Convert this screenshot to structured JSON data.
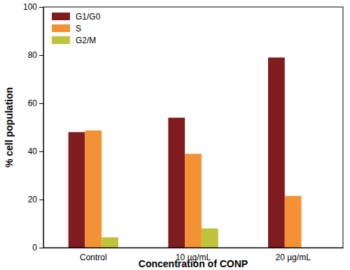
{
  "chart_data": {
    "type": "bar",
    "x_label": "Concentration of CONP",
    "y_label": "% cell population",
    "categories": [
      "Control",
      "10 µg/mL",
      "20 µg/mL"
    ],
    "series": [
      {
        "name": "G1/G0",
        "color": "#7f1c1f",
        "values": [
          48,
          54,
          79
        ]
      },
      {
        "name": "S",
        "color": "#f39235",
        "values": [
          48.7,
          39,
          21.5
        ]
      },
      {
        "name": "G2/M",
        "color": "#bfc33b",
        "values": [
          4.3,
          8,
          0
        ]
      }
    ],
    "ylim": [
      0,
      100
    ],
    "yticks": [
      0,
      20,
      40,
      60,
      80,
      100
    ],
    "grid": false,
    "legend": "upper left"
  }
}
